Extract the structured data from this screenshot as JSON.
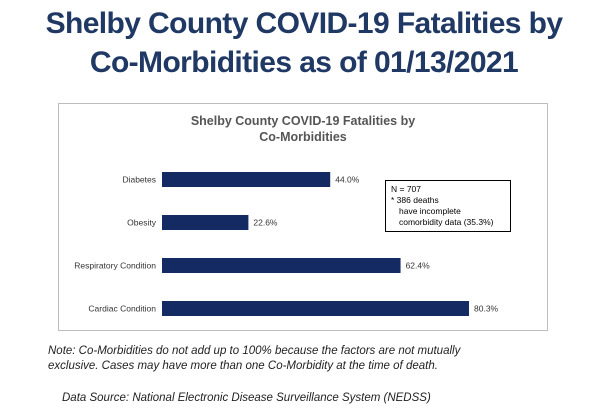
{
  "slide_title_line1": "Shelby County COVID-19 Fatalities by",
  "slide_title_line2": "Co-Morbidities as of 01/13/2021",
  "chart_data": {
    "type": "bar",
    "orientation": "horizontal",
    "title_line1": "Shelby County COVID-19 Fatalities by",
    "title_line2": "Co-Morbidities",
    "categories": [
      "Diabetes",
      "Obesity",
      "Respiratory Condition",
      "Cardiac Condition"
    ],
    "values": [
      44.0,
      22.6,
      62.4,
      80.3
    ],
    "value_labels": [
      "44.0%",
      "22.6%",
      "62.4%",
      "80.3%"
    ],
    "xlim": [
      0,
      80.3
    ],
    "bar_color": "#132a63",
    "grid": false,
    "legend": "none"
  },
  "note_box": {
    "line1": "N = 707",
    "line2": "* 386 deaths",
    "line3": "have incomplete",
    "line4": "comorbidity data (35.3%)"
  },
  "footnote_line1": "Note: Co-Morbidities do not add up to 100%  because the factors are not mutually",
  "footnote_line2": "exclusive. Cases may have more than one Co-Morbidity at the time of death.",
  "source": "Data Source: National Electronic Disease Surveillance System (NEDSS)"
}
